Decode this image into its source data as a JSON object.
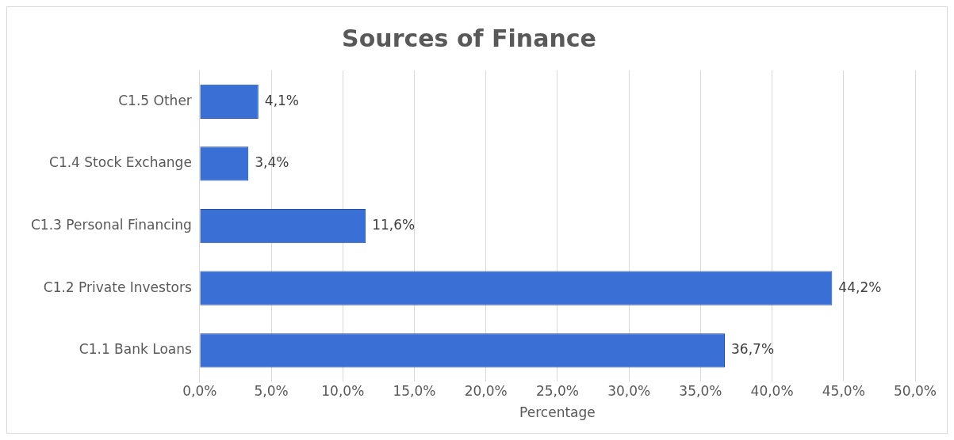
{
  "chart_data": {
    "type": "bar",
    "orientation": "horizontal",
    "title": "Sources of Finance",
    "xlabel": "Percentage",
    "categories": [
      "C1.5 Other",
      "C1.4 Stock Exchange",
      "C1.3 Personal Financing",
      "C1.2 Private Investors",
      "C1.1 Bank Loans"
    ],
    "values": [
      4.1,
      3.4,
      11.6,
      44.2,
      36.7
    ],
    "value_labels": [
      "4,1%",
      "3,4%",
      "11,6%",
      "44,2%",
      "36,7%"
    ],
    "color": "#3a6fd6",
    "xlim": [
      0,
      50
    ],
    "xticks": [
      {
        "value": 0,
        "label": "0,0%"
      },
      {
        "value": 5,
        "label": "5,0%"
      },
      {
        "value": 10,
        "label": "10,0%"
      },
      {
        "value": 15,
        "label": "15,0%"
      },
      {
        "value": 20,
        "label": "20,0%"
      },
      {
        "value": 25,
        "label": "25,0%"
      },
      {
        "value": 30,
        "label": "30,0%"
      },
      {
        "value": 35,
        "label": "35,0%"
      },
      {
        "value": 40,
        "label": "40,0%"
      },
      {
        "value": 45,
        "label": "45,0%"
      },
      {
        "value": 50,
        "label": "50,0%"
      }
    ],
    "grid": "x",
    "legend": false
  }
}
